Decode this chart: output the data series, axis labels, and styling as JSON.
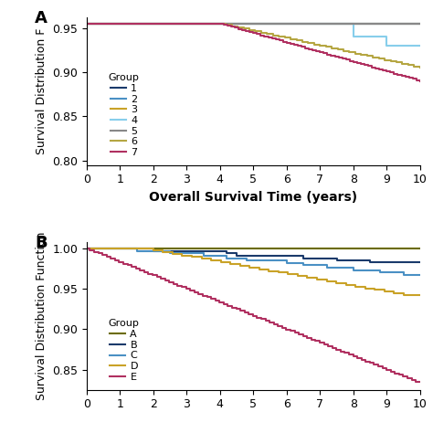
{
  "panel_A": {
    "xlabel": "Overall Survival Time (years)",
    "ylabel": "Survival Distribution F",
    "xlim": [
      0,
      10
    ],
    "ylim": [
      0.795,
      0.962
    ],
    "yticks": [
      0.8,
      0.85,
      0.9,
      0.95
    ],
    "xticks": [
      0,
      1,
      2,
      3,
      4,
      5,
      6,
      7,
      8,
      9,
      10
    ]
  },
  "panel_B": {
    "ylabel": "Survival Distribution Function",
    "xlim": [
      0,
      10
    ],
    "ylim": [
      0.825,
      1.008
    ],
    "yticks": [
      0.85,
      0.9,
      0.95,
      1.0
    ],
    "xticks": [
      0,
      1,
      2,
      3,
      4,
      5,
      6,
      7,
      8,
      9,
      10
    ]
  },
  "colors": {
    "dark_blue": "#1a3a6b",
    "light_blue": "#4a90c4",
    "gold": "#c9a227",
    "light_cyan": "#87ceeb",
    "gray": "#888888",
    "olive": "#b5a642",
    "crimson": "#b03060",
    "dark_olive": "#6b6b00"
  },
  "font_size": 9,
  "label_font_size": 10,
  "legend_font_size": 8,
  "line_width": 1.5
}
